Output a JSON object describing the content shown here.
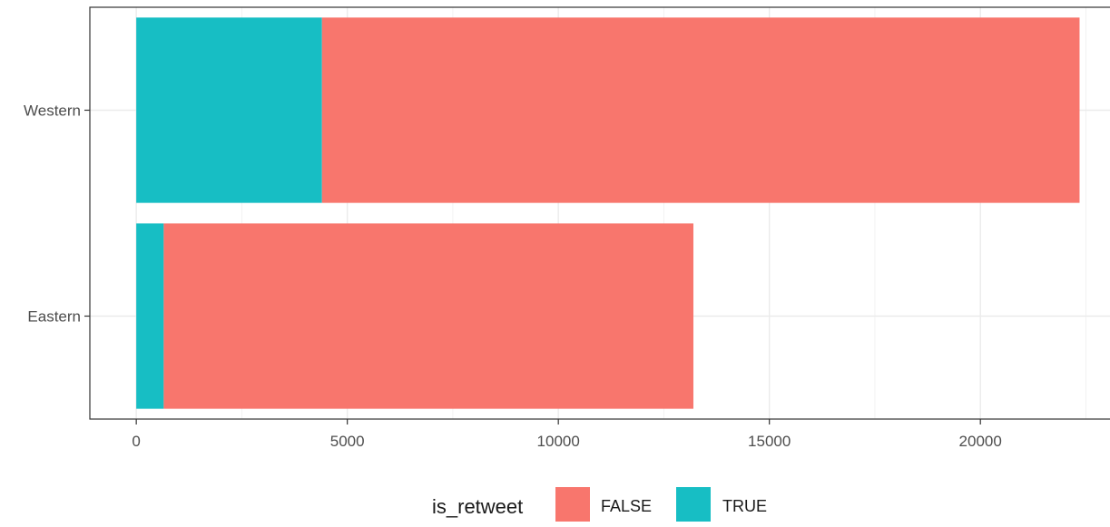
{
  "chart_data": {
    "type": "bar",
    "orientation": "horizontal",
    "stacked": true,
    "categories": [
      "Western",
      "Eastern"
    ],
    "series": [
      {
        "name": "FALSE",
        "color": "#F8766D",
        "values": [
          17950,
          12550
        ]
      },
      {
        "name": "TRUE",
        "color": "#17BEC4",
        "values": [
          4400,
          650
        ]
      }
    ],
    "x_ticks": [
      0,
      5000,
      10000,
      15000,
      20000
    ],
    "xlim": [
      -1100,
      23200
    ],
    "grid": true,
    "theme": "bw",
    "legend": {
      "title": "is_retweet",
      "position": "bottom",
      "entries": [
        "FALSE",
        "TRUE"
      ]
    }
  }
}
